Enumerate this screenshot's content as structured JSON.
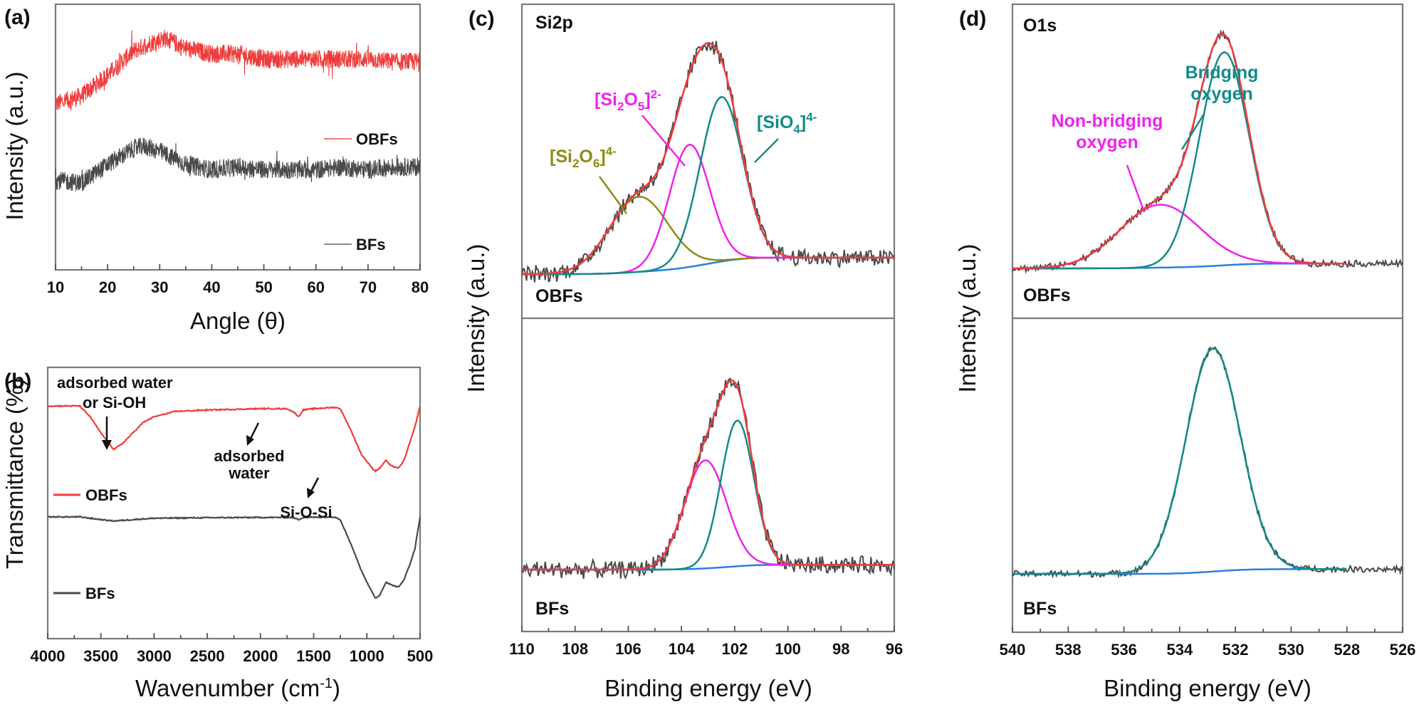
{
  "chart_data": [
    {
      "id": "a",
      "type": "line",
      "panel_label": "(a)",
      "title": "",
      "xlabel": "Angle (θ)",
      "ylabel": "Intensity (a.u.)",
      "xlim": [
        10,
        80
      ],
      "x_ticks": [
        "10",
        "20",
        "30",
        "40",
        "50",
        "60",
        "70",
        "80"
      ],
      "legend": [
        "OBFs",
        "BFs"
      ],
      "legend_position": "right",
      "series": [
        {
          "name": "OBFs",
          "color": "#f03c3c",
          "x": [
            10,
            15,
            20,
            25,
            28,
            31,
            35,
            40,
            45,
            50,
            55,
            60,
            65,
            70,
            75,
            80
          ],
          "y": [
            0.63,
            0.66,
            0.74,
            0.83,
            0.86,
            0.88,
            0.84,
            0.82,
            0.82,
            0.8,
            0.8,
            0.8,
            0.8,
            0.8,
            0.79,
            0.79
          ]
        },
        {
          "name": "BFs",
          "color": "#4a4a4a",
          "x": [
            10,
            15,
            20,
            25,
            27,
            30,
            35,
            40,
            45,
            50,
            55,
            60,
            65,
            70,
            75,
            80
          ],
          "y": [
            0.34,
            0.33,
            0.4,
            0.46,
            0.47,
            0.45,
            0.4,
            0.38,
            0.39,
            0.38,
            0.38,
            0.38,
            0.39,
            0.38,
            0.39,
            0.39
          ]
        }
      ]
    },
    {
      "id": "b",
      "type": "line",
      "panel_label": "(b)",
      "title": "",
      "xlabel": "Wavenumber (cm",
      "xlabel_sup": "-1",
      "xlabel_end": ")",
      "ylabel": "Transmittance (%)",
      "xlim": [
        4000,
        500
      ],
      "x_ticks": [
        "4000",
        "3500",
        "3000",
        "2500",
        "2000",
        "1500",
        "1000",
        "500"
      ],
      "legend": [
        "OBFs",
        "BFs"
      ],
      "legend_position": "left",
      "annotations": [
        {
          "text_lines": [
            "adsorbed water",
            "or Si-OH"
          ],
          "x": 3380
        },
        {
          "text_lines": [
            "adsorbed",
            "water"
          ],
          "x": 1640
        },
        {
          "text_lines": [
            "Si-O-Si"
          ],
          "x": 920
        }
      ],
      "series": [
        {
          "name": "OBFs",
          "color": "#f03c3c",
          "x": [
            4000,
            3700,
            3600,
            3500,
            3400,
            3380,
            3300,
            3200,
            3100,
            3000,
            2800,
            2500,
            2000,
            1750,
            1680,
            1640,
            1600,
            1500,
            1300,
            1250,
            1150,
            1050,
            950,
            920,
            880,
            820,
            780,
            700,
            650,
            600,
            550,
            500
          ],
          "y": [
            0.86,
            0.86,
            0.82,
            0.76,
            0.71,
            0.7,
            0.72,
            0.76,
            0.8,
            0.82,
            0.84,
            0.845,
            0.85,
            0.85,
            0.835,
            0.82,
            0.845,
            0.85,
            0.855,
            0.85,
            0.77,
            0.68,
            0.63,
            0.62,
            0.63,
            0.66,
            0.64,
            0.63,
            0.66,
            0.72,
            0.78,
            0.86
          ]
        },
        {
          "name": "BFs",
          "color": "#4a4a4a",
          "x": [
            4000,
            3700,
            3500,
            3380,
            3200,
            3000,
            2500,
            2000,
            1700,
            1640,
            1600,
            1300,
            1250,
            1150,
            1050,
            1000,
            950,
            920,
            880,
            820,
            780,
            700,
            650,
            600,
            550,
            500
          ],
          "y": [
            0.45,
            0.45,
            0.44,
            0.435,
            0.44,
            0.445,
            0.447,
            0.448,
            0.448,
            0.44,
            0.448,
            0.45,
            0.44,
            0.35,
            0.25,
            0.21,
            0.17,
            0.15,
            0.16,
            0.21,
            0.2,
            0.19,
            0.22,
            0.27,
            0.33,
            0.45
          ]
        }
      ]
    },
    {
      "id": "c",
      "type": "line",
      "panel_label": "(c)",
      "title": "Si2p",
      "xlabel": "Binding energy (eV)",
      "ylabel": "Intensity (a.u.)",
      "xlim": [
        110,
        96
      ],
      "x_ticks": [
        "110",
        "108",
        "106",
        "104",
        "102",
        "100",
        "98",
        "96"
      ],
      "subpanels": [
        {
          "sample": "OBFs",
          "components": [
            {
              "name": "[Si2O6]4-",
              "label_main": "[Si",
              "label_sub1": "2",
              "label_mid": "O",
              "label_sub2": "6",
              "label_end": "]",
              "label_sup": "4-",
              "color": "#8c8c14",
              "center_eV": 105.6,
              "height": 0.32,
              "fwhm": 2.6
            },
            {
              "name": "[Si2O5]2-",
              "label_main": "[Si",
              "label_sub1": "2",
              "label_mid": "O",
              "label_sub2": "5",
              "label_end": "]",
              "label_sup": "2-",
              "color": "#ee22ee",
              "center_eV": 103.7,
              "height": 0.52,
              "fwhm": 1.8
            },
            {
              "name": "[SiO4]4-",
              "label_main": "[SiO",
              "label_sub1": "4",
              "label_mid": "",
              "label_sub2": "",
              "label_end": "]",
              "label_sup": "4-",
              "color": "#138a8a",
              "center_eV": 102.5,
              "height": 0.7,
              "fwhm": 1.9
            }
          ],
          "envelope_color": "#f03c3c",
          "background_color": "#2a7fe0",
          "raw_color": "#4a4a4a"
        },
        {
          "sample": "BFs",
          "components": [
            {
              "name": "[Si2O5]2-",
              "color": "#ee22ee",
              "center_eV": 103.1,
              "height": 0.46,
              "fwhm": 1.85
            },
            {
              "name": "[SiO4]4-",
              "color": "#138a8a",
              "center_eV": 101.9,
              "height": 0.62,
              "fwhm": 1.45
            }
          ],
          "envelope_color": "#f03c3c",
          "background_color": "#2a7fe0",
          "raw_color": "#4a4a4a"
        }
      ]
    },
    {
      "id": "d",
      "type": "line",
      "panel_label": "(d)",
      "title": "O1s",
      "xlabel": "Binding energy (eV)",
      "ylabel": "Intensity (a.u.)",
      "xlim": [
        540,
        526
      ],
      "x_ticks": [
        "540",
        "538",
        "536",
        "534",
        "532",
        "530",
        "528",
        "526"
      ],
      "subpanels": [
        {
          "sample": "OBFs",
          "components": [
            {
              "name": "Non-bridging oxygen",
              "label_lines": [
                "Non-bridging",
                "oxygen"
              ],
              "color": "#ee22ee",
              "center_eV": 534.7,
              "height": 0.26,
              "fwhm": 3.4
            },
            {
              "name": "Bridging oxygen",
              "label_lines": [
                "Bridging",
                "oxygen"
              ],
              "color": "#138a8a",
              "center_eV": 532.4,
              "height": 0.88,
              "fwhm": 2.1
            }
          ],
          "envelope_color": "#f03c3c",
          "background_color": "#2a7fe0",
          "raw_color": "#4a4a4a"
        },
        {
          "sample": "BFs",
          "components": [
            {
              "name": "Bridging oxygen",
              "color": "#138a8a",
              "center_eV": 532.8,
              "height": 0.95,
              "fwhm": 2.3
            }
          ],
          "background_color": "#2a7fe0",
          "raw_color": "#4a4a4a"
        }
      ]
    }
  ]
}
